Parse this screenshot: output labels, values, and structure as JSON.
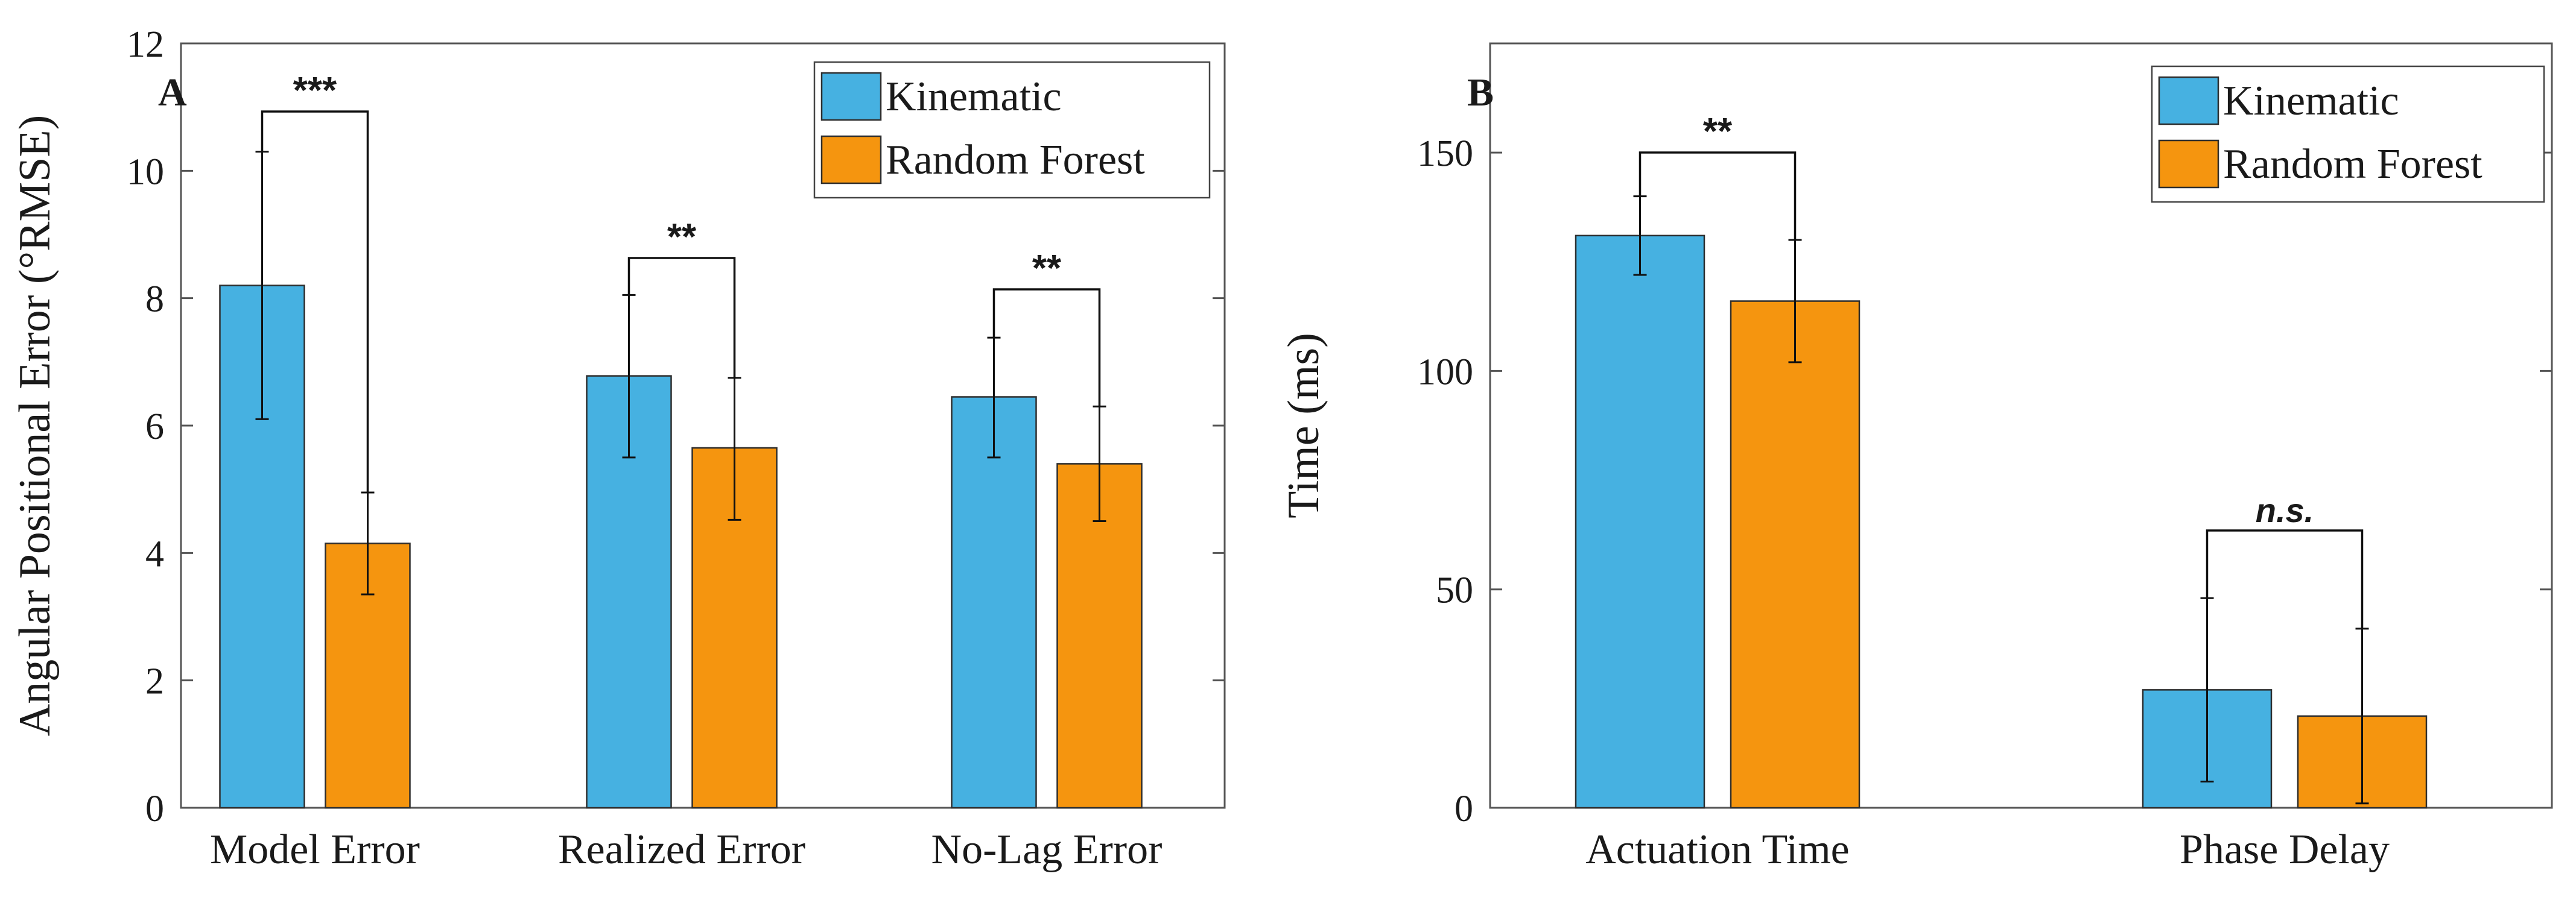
{
  "colors": {
    "kinematic": "#46b1e1",
    "random_forest": "#f5950f",
    "axis": "#555555"
  },
  "chart_data": [
    {
      "type": "bar",
      "panel_label": "A",
      "ylabel": "Angular Positional Error (°RMSE)",
      "xlabel": "",
      "ylim": [
        0,
        12
      ],
      "yticks": [
        0,
        2,
        4,
        6,
        8,
        10,
        12
      ],
      "grid": false,
      "legend_position": "top-right",
      "categories": [
        "Model Error",
        "Realized Error",
        "No-Lag Error"
      ],
      "series": [
        {
          "name": "Kinematic",
          "color": "#46b1e1",
          "values": [
            8.2,
            6.78,
            6.45
          ],
          "err_low": [
            6.1,
            5.5,
            5.5
          ],
          "err_high": [
            10.3,
            8.05,
            7.38
          ]
        },
        {
          "name": "Random Forest",
          "color": "#f5950f",
          "values": [
            4.15,
            5.65,
            5.4
          ],
          "err_low": [
            3.35,
            4.52,
            4.5
          ],
          "err_high": [
            4.95,
            6.75,
            6.3
          ]
        }
      ],
      "significance": [
        "***",
        "**",
        "**"
      ],
      "significance_italic": [
        false,
        false,
        false
      ]
    },
    {
      "type": "bar",
      "panel_label": "B",
      "ylabel": "Time (ms)",
      "xlabel": "",
      "ylim": [
        0,
        175
      ],
      "yticks": [
        0,
        50,
        100,
        150
      ],
      "grid": false,
      "legend_position": "top-right",
      "categories": [
        "Actuation Time",
        "Phase Delay"
      ],
      "series": [
        {
          "name": "Kinematic",
          "color": "#46b1e1",
          "values": [
            131,
            27
          ],
          "err_low": [
            122,
            6
          ],
          "err_high": [
            140,
            48
          ]
        },
        {
          "name": "Random Forest",
          "color": "#f5950f",
          "values": [
            116,
            21
          ],
          "err_low": [
            102,
            1
          ],
          "err_high": [
            130,
            41
          ]
        }
      ],
      "significance": [
        "**",
        "n.s."
      ],
      "significance_italic": [
        false,
        true
      ]
    }
  ]
}
